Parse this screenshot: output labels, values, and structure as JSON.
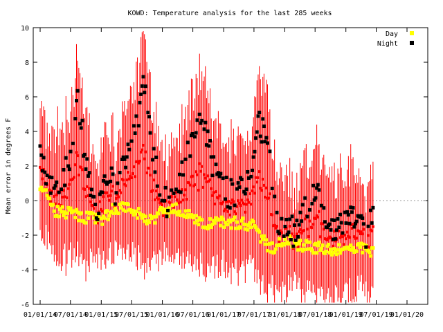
{
  "chart_data": {
    "type": "scatter",
    "title": "KOWD: Temperature analysis for the last 285 weeks",
    "ylabel": "Mean error in degrees F",
    "xlabel": "",
    "ylim": [
      -6,
      10
    ],
    "y_ticks": [
      "-6",
      "-4",
      "-2",
      "0",
      "2",
      "4",
      "6",
      "8",
      "10"
    ],
    "x_tick_labels": [
      "01/01/14",
      "07/01/14",
      "01/01/15",
      "07/01/15",
      "01/01/16",
      "07/01/16",
      "01/01/17",
      "07/01/17",
      "01/01/18",
      "07/01/18",
      "01/01/19",
      "07/01/19",
      "01/01/20"
    ],
    "x_tick_display": [
      "01/01/14",
      "07/01/14",
      "01/01/15",
      "07/01/15",
      "01/01/16",
      "07/01/16",
      "01/01/17",
      "07/01/17",
      "01/01/18",
      "07/01/18",
      "01/01/19",
      "07/01/19",
      "01/01/20"
    ],
    "grid": false,
    "zero_line": true,
    "legend_position": "top-right",
    "colors": {
      "day": "#ffff00",
      "night": "#000000",
      "error_bars": "#ff0000",
      "frame": "#000000"
    },
    "series": [
      {
        "name": "Day",
        "weekly_mean_error_knots": [
          [
            "01/01/14",
            1.0
          ],
          [
            "04/01/14",
            -0.6
          ],
          [
            "07/01/14",
            -0.7
          ],
          [
            "10/01/14",
            -1.0
          ],
          [
            "01/01/15",
            -1.1
          ],
          [
            "04/01/15",
            -0.4
          ],
          [
            "07/01/15",
            -0.4
          ],
          [
            "10/01/15",
            -1.3
          ],
          [
            "01/01/16",
            -0.7
          ],
          [
            "04/01/16",
            -0.5
          ],
          [
            "07/01/16",
            -1.0
          ],
          [
            "10/01/16",
            -1.3
          ],
          [
            "01/01/17",
            -1.2
          ],
          [
            "04/01/17",
            -1.3
          ],
          [
            "07/01/17",
            -1.5
          ],
          [
            "10/01/17",
            -2.8
          ],
          [
            "01/01/18",
            -2.3
          ],
          [
            "04/01/18",
            -2.6
          ],
          [
            "07/01/18",
            -2.7
          ],
          [
            "10/01/18",
            -2.9
          ],
          [
            "01/01/19",
            -2.8
          ],
          [
            "04/01/19",
            -2.6
          ],
          [
            "07/01/19",
            -3.2
          ]
        ]
      },
      {
        "name": "Night",
        "weekly_mean_error_knots": [
          [
            "01/01/14",
            2.4
          ],
          [
            "03/01/14",
            0.5
          ],
          [
            "05/01/14",
            1.5
          ],
          [
            "07/01/14",
            2.0
          ],
          [
            "08/15/14",
            5.8
          ],
          [
            "10/01/14",
            2.3
          ],
          [
            "11/15/14",
            -0.5
          ],
          [
            "01/01/15",
            0.0
          ],
          [
            "02/15/15",
            2.0
          ],
          [
            "04/01/15",
            0.2
          ],
          [
            "06/01/15",
            3.0
          ],
          [
            "08/01/15",
            4.5
          ],
          [
            "09/15/15",
            7.2
          ],
          [
            "11/01/15",
            3.0
          ],
          [
            "01/01/16",
            0.2
          ],
          [
            "03/01/16",
            -0.3
          ],
          [
            "05/01/16",
            1.5
          ],
          [
            "07/01/16",
            3.5
          ],
          [
            "09/01/16",
            4.5
          ],
          [
            "10/15/16",
            2.5
          ],
          [
            "12/01/16",
            1.0
          ],
          [
            "02/01/17",
            0.4
          ],
          [
            "04/01/17",
            0.3
          ],
          [
            "06/01/17",
            1.2
          ],
          [
            "08/01/17",
            4.5
          ],
          [
            "09/15/17",
            3.8
          ],
          [
            "11/01/17",
            -0.6
          ],
          [
            "01/01/18",
            -1.6
          ],
          [
            "03/01/18",
            -1.8
          ],
          [
            "05/01/18",
            -0.6
          ],
          [
            "07/01/18",
            0.6
          ],
          [
            "09/01/18",
            -0.9
          ],
          [
            "11/01/18",
            -1.9
          ],
          [
            "01/01/19",
            -1.3
          ],
          [
            "03/01/19",
            -1.2
          ],
          [
            "05/01/19",
            -1.8
          ],
          [
            "07/01/19",
            -0.8
          ],
          [
            "08/01/19",
            -0.6
          ]
        ]
      }
    ]
  }
}
